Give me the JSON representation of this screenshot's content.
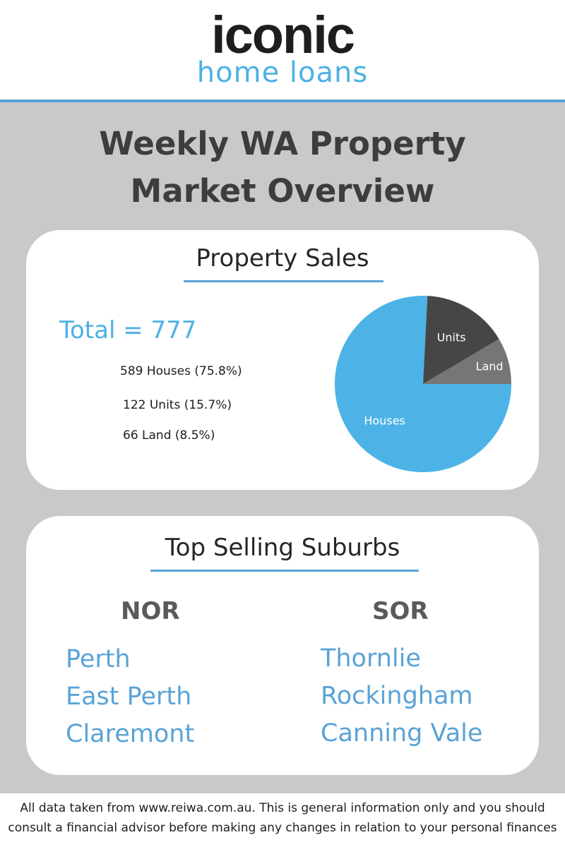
{
  "brand": {
    "logo_word": "iconic",
    "logo_sub": "home loans"
  },
  "title_line1": "Weekly WA Property",
  "title_line2": "Market Overview",
  "sales": {
    "heading": "Property Sales",
    "total": "Total = 777",
    "stats": [
      "589 Houses (75.8%)",
      "122 Units (15.7%)",
      "66 Land (8.5%)"
    ]
  },
  "chart_data": {
    "type": "pie",
    "categories": [
      "Houses",
      "Units",
      "Land"
    ],
    "values": [
      589,
      122,
      66
    ],
    "colors": [
      "#4db3e6",
      "#464646",
      "#767676"
    ],
    "label_color": "#ffffff"
  },
  "suburbs": {
    "heading": "Top Selling Suburbs",
    "nor": {
      "label": "NOR",
      "items": [
        "Perth",
        "East Perth",
        "Claremont"
      ]
    },
    "sor": {
      "label": "SOR",
      "items": [
        "Thornlie",
        "Rockingham",
        "Canning Vale"
      ]
    }
  },
  "footer": {
    "line1": "All data taken from www.reiwa.com.au. This is general information only and you should",
    "line2": "consult a financial advisor before making any changes in relation to your personal finances"
  }
}
